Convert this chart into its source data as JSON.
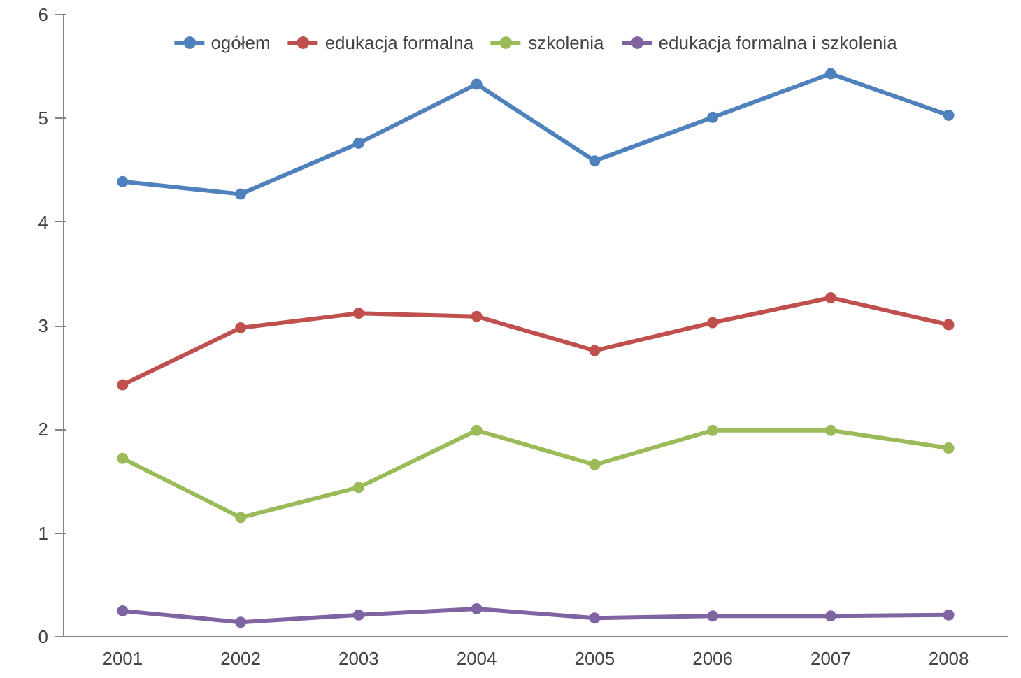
{
  "chart_data": {
    "type": "line",
    "categories": [
      "2001",
      "2002",
      "2003",
      "2004",
      "2005",
      "2006",
      "2007",
      "2008"
    ],
    "series": [
      {
        "name": "ogółem",
        "color": "#4f81bd",
        "values": [
          4.39,
          4.27,
          4.76,
          5.33,
          4.59,
          5.01,
          5.43,
          5.03
        ]
      },
      {
        "name": "edukacja formalna",
        "color": "#c0504d",
        "values": [
          2.43,
          2.98,
          3.12,
          3.09,
          2.76,
          3.03,
          3.27,
          3.01
        ]
      },
      {
        "name": "szkolenia",
        "color": "#9bbb59",
        "values": [
          1.72,
          1.15,
          1.44,
          1.99,
          1.66,
          1.99,
          1.99,
          1.82
        ]
      },
      {
        "name": "edukacja formalna i szkolenia",
        "color": "#8064a2",
        "values": [
          0.25,
          0.14,
          0.21,
          0.27,
          0.18,
          0.2,
          0.2,
          0.21
        ]
      }
    ],
    "ylim": [
      0,
      6
    ],
    "yticks": [
      0,
      1,
      2,
      3,
      4,
      5,
      6
    ],
    "grid": false,
    "legend": "top",
    "marker": "circle",
    "line_style": "solid"
  }
}
